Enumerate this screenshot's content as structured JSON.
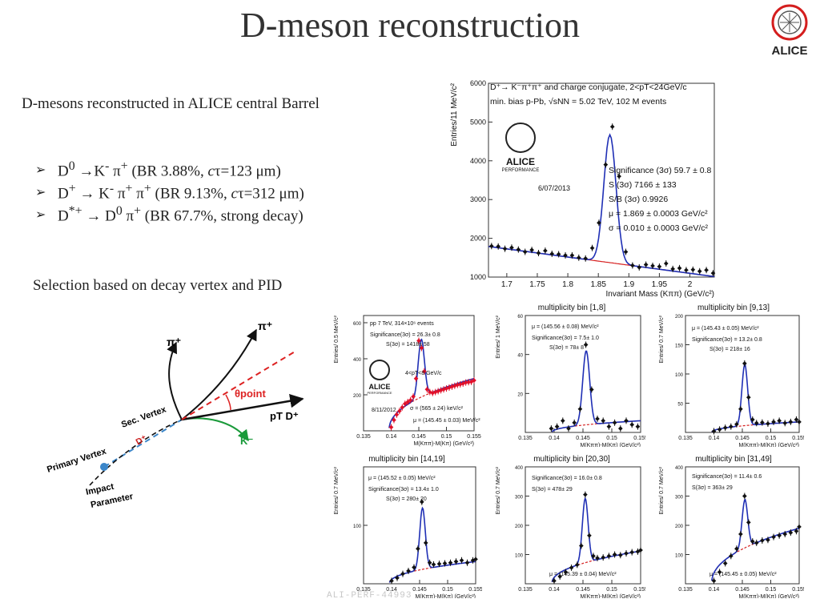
{
  "slide": {
    "title": "D-meson reconstruction",
    "logo_text": "ALICE",
    "subtitle": "D-mesons reconstructed in ALICE central Barrel",
    "bullets": [
      {
        "html": "D<sup>0</sup> →K<sup>-</sup> π<sup>+</sup> (BR 3.88%, <i>c</i>τ=123 μm)"
      },
      {
        "html": "D<sup>+</sup> → K<sup>-</sup> π<sup>+</sup> π<sup>+</sup> (BR 9.13%, <i>c</i>τ=312 μm)"
      },
      {
        "html": "D<sup>*+</sup> → D<sup>0</sup> π<sup>+</sup> (BR 67.7%, strong decay)"
      }
    ],
    "selection_text": "Selection based on decay vertex and PID",
    "watermark": "ALI-PERF-44993"
  },
  "diagram": {
    "labels": {
      "pi_top": "π⁺",
      "pi_left": "π⁺",
      "theta": "θpoint",
      "pt": "pT D⁺",
      "k": "K⁻",
      "sec_vertex": "Sec. Vertex",
      "dplus": "D⁺",
      "primary": "Primary Vertex",
      "impact": "Impact",
      "parameter": "Parameter"
    }
  },
  "colors": {
    "data": "#111111",
    "fit": "#1f2fb5",
    "bkg": "#d62020",
    "peak_red": "#e0102a"
  },
  "chart_data": [
    {
      "type": "scatter",
      "id": "dplus-mass",
      "ylabel": "Entries/11 MeV/c²",
      "xlabel": "Invariant Mass (Kππ) (GeV/c²)",
      "xlim": [
        1.67,
        2.04
      ],
      "ylim": [
        1000,
        6000
      ],
      "xticks": [
        "1.7",
        "1.75",
        "1.8",
        "1.85",
        "1.9",
        "1.95",
        "2"
      ],
      "yticks": [
        "1000",
        "2000",
        "3000",
        "4000",
        "5000",
        "6000"
      ],
      "annotations": [
        "D⁺→ K⁻π⁺π⁺ and charge conjugate, 2<pT<24GeV/c",
        "min. bias p-Pb, √sNN = 5.02 TeV, 102 M events",
        "Significance (3σ) 59.7 ± 0.8",
        "S (3σ) 7166 ± 133",
        "S/B (3σ) 0.9926",
        "μ = 1.869 ± 0.0003 GeV/c²",
        "σ = 0.010 ± 0.0003 GeV/c²"
      ],
      "logo_text": "ALICE",
      "logo_sub": "PERFORMANCE",
      "date": "6/07/2013",
      "fit": {
        "mu": 1.869,
        "sigma": 0.01,
        "bkg_a": 1790,
        "bkg_slope": -2100
      },
      "x": [
        1.675,
        1.686,
        1.697,
        1.708,
        1.719,
        1.73,
        1.741,
        1.752,
        1.763,
        1.774,
        1.785,
        1.796,
        1.807,
        1.818,
        1.829,
        1.84,
        1.851,
        1.862,
        1.873,
        1.884,
        1.895,
        1.906,
        1.917,
        1.928,
        1.939,
        1.95,
        1.961,
        1.972,
        1.983,
        1.994,
        2.005,
        2.016,
        2.027,
        2.038
      ],
      "y": [
        1800,
        1790,
        1730,
        1760,
        1710,
        1650,
        1700,
        1620,
        1680,
        1600,
        1590,
        1560,
        1560,
        1500,
        1480,
        1750,
        2400,
        3900,
        4880,
        3600,
        1650,
        1300,
        1250,
        1320,
        1290,
        1270,
        1350,
        1210,
        1230,
        1180,
        1190,
        1150,
        1180,
        1100
      ]
    },
    {
      "type": "scatter",
      "id": "dstar-pp",
      "ylabel": "Entries/ 0.5 MeV/c²",
      "xlabel": "M(Kππ)-M(Kπ) (GeV/c²)",
      "xlim": [
        0.135,
        0.155
      ],
      "ylim": [
        0,
        640
      ],
      "xticks": [
        "0.135",
        "0.14",
        "0.145",
        "0.15",
        "0.155"
      ],
      "yticks": [
        "200",
        "400",
        "600"
      ],
      "annotations": [
        "pp 7 TeV, 314×10⁶ events",
        "Significance(3σ) = 26.3± 0.8",
        "S(3σ) = 1418± 58",
        "4<pT<8 GeV/c",
        "σ = (565 ± 24) keV/c²",
        "μ = (145.45 ± 0.03) MeV/c²"
      ],
      "logo_text": "ALICE",
      "logo_sub": "PERFORMANCE",
      "date": "8/11/2012",
      "fit": {
        "mu": 0.14545,
        "sigma": 0.000565,
        "amp": 320,
        "bkg_amp": 290
      },
      "x": [
        0.14,
        0.1405,
        0.141,
        0.1415,
        0.142,
        0.1425,
        0.143,
        0.1435,
        0.144,
        0.1445,
        0.145,
        0.1455,
        0.146,
        0.1465,
        0.147,
        0.1475,
        0.148,
        0.1485,
        0.149,
        0.1495,
        0.15,
        0.1505,
        0.151,
        0.1515,
        0.152,
        0.1525,
        0.153,
        0.1535,
        0.154,
        0.1545,
        0.155
      ],
      "y": [
        20,
        60,
        90,
        110,
        130,
        150,
        160,
        170,
        190,
        290,
        500,
        460,
        330,
        230,
        215,
        210,
        215,
        220,
        225,
        230,
        235,
        240,
        245,
        250,
        255,
        258,
        262,
        268,
        270,
        272,
        280
      ]
    },
    {
      "type": "scatter",
      "id": "bin-1-8",
      "title": "multiplicity bin [1,8]",
      "ylabel": "Entries/ 1 MeV/c²",
      "xlabel": "M(Kππ)-M(Kπ) (GeV/c²)",
      "xlim": [
        0.135,
        0.155
      ],
      "ylim": [
        0,
        60
      ],
      "xticks": [
        "0.135",
        "0.14",
        "0.145",
        "0.15",
        "0.155"
      ],
      "yticks": [
        "20",
        "40",
        "60"
      ],
      "annotations": [
        "μ = (145.56 ± 0.08) MeV/c²",
        "Significance(3σ) = 7.5± 1.0",
        "S(3σ) = 78± 8"
      ],
      "fit": {
        "mu": 0.14556,
        "sigma": 0.0006,
        "amp": 38,
        "bkg_amp": 6
      },
      "x": [
        0.1395,
        0.1405,
        0.1415,
        0.1425,
        0.1435,
        0.1445,
        0.1455,
        0.1465,
        0.1475,
        0.1485,
        0.1495,
        0.1505,
        0.1515,
        0.1525,
        0.1535,
        0.1545
      ],
      "y": [
        2,
        3,
        6,
        2,
        5,
        12,
        45,
        22,
        7,
        6,
        3,
        5,
        2,
        6,
        4,
        3
      ]
    },
    {
      "type": "scatter",
      "id": "bin-9-13",
      "title": "multiplicity bin [9,13]",
      "ylabel": "Entries/ 0.7 MeV/c²",
      "xlabel": "M(Kππ)-M(Kπ) (GeV/c²)",
      "xlim": [
        0.135,
        0.155
      ],
      "ylim": [
        0,
        200
      ],
      "xticks": [
        "0.135",
        "0.14",
        "0.145",
        "0.15",
        "0.155"
      ],
      "yticks": [
        "50",
        "100",
        "150",
        "200"
      ],
      "annotations": [
        "μ = (145.43 ± 0.05) MeV/c²",
        "Significance(3σ) = 13.2± 0.8",
        "S(3σ) = 218± 16"
      ],
      "fit": {
        "mu": 0.14543,
        "sigma": 0.0005,
        "amp": 105,
        "bkg_amp": 18
      },
      "x": [
        0.14,
        0.141,
        0.142,
        0.143,
        0.144,
        0.1447,
        0.1454,
        0.1461,
        0.1468,
        0.1475,
        0.1485,
        0.1495,
        0.1505,
        0.1515,
        0.1525,
        0.1535,
        0.1545,
        0.155
      ],
      "y": [
        2,
        5,
        8,
        10,
        14,
        40,
        118,
        60,
        22,
        16,
        17,
        15,
        18,
        20,
        16,
        18,
        22,
        18
      ]
    },
    {
      "type": "scatter",
      "id": "bin-14-19",
      "title": "multiplicity bin [14,19]",
      "ylabel": "Entries/ 0.7 MeV/c²",
      "xlabel": "M(Kππ)-M(Kπ) (GeV/c²)",
      "xlim": [
        0.135,
        0.155
      ],
      "ylim": [
        0,
        200
      ],
      "xticks": [
        "0.135",
        "0.14",
        "0.145",
        "0.15",
        "0.155"
      ],
      "yticks": [
        "100"
      ],
      "annotations": [
        "μ = (145.52 ± 0.05) MeV/c²",
        "Significance(3σ) = 13.4± 1.0",
        "S(3σ) = 280± 20"
      ],
      "fit": {
        "mu": 0.14552,
        "sigma": 0.0005,
        "amp": 105,
        "bkg_amp": 38
      },
      "x": [
        0.14,
        0.141,
        0.142,
        0.143,
        0.144,
        0.1447,
        0.1454,
        0.1461,
        0.1468,
        0.1475,
        0.1485,
        0.1495,
        0.1505,
        0.1515,
        0.1525,
        0.1535,
        0.1545,
        0.155
      ],
      "y": [
        5,
        10,
        17,
        22,
        28,
        60,
        140,
        70,
        36,
        33,
        34,
        35,
        36,
        38,
        40,
        36,
        40,
        42
      ]
    },
    {
      "type": "scatter",
      "id": "bin-20-30",
      "title": "multiplicity bin [20,30]",
      "ylabel": "Entries/ 0.7 MeV/c²",
      "xlabel": "M(Kππ)-M(Kπ) (GeV/c²)",
      "xlim": [
        0.135,
        0.155
      ],
      "ylim": [
        0,
        400
      ],
      "xticks": [
        "0.135",
        "0.14",
        "0.145",
        "0.15",
        "0.155"
      ],
      "yticks": [
        "100",
        "200",
        "300",
        "400"
      ],
      "annotations": [
        "Significance(3σ) = 16.0± 0.8",
        "S(3σ) = 478± 29",
        "μ = (145.39 ± 0.04) MeV/c²"
      ],
      "fit": {
        "mu": 0.14539,
        "sigma": 0.0005,
        "amp": 220,
        "bkg_amp": 112
      },
      "x": [
        0.14,
        0.141,
        0.142,
        0.143,
        0.144,
        0.1447,
        0.1454,
        0.1461,
        0.1468,
        0.1475,
        0.1485,
        0.1495,
        0.1505,
        0.1515,
        0.1525,
        0.1535,
        0.1545,
        0.155
      ],
      "y": [
        10,
        25,
        40,
        55,
        65,
        130,
        305,
        165,
        95,
        88,
        90,
        95,
        100,
        98,
        104,
        108,
        110,
        115
      ]
    },
    {
      "type": "scatter",
      "id": "bin-31-49",
      "title": "multiplicity bin [31,49]",
      "ylabel": "Entries/ 0.7 MeV/c²",
      "xlabel": "M(Kππ)-M(Kπ) (GeV/c²)",
      "xlim": [
        0.135,
        0.155
      ],
      "ylim": [
        0,
        400
      ],
      "xticks": [
        "0.135",
        "0.14",
        "0.145",
        "0.15",
        "0.155"
      ],
      "yticks": [
        "100",
        "200",
        "300",
        "400"
      ],
      "annotations": [
        "Significance(3σ) = 11.4± 0.6",
        "S(3σ) = 363± 29",
        "μ = (145.45 ± 0.05) MeV/c²"
      ],
      "fit": {
        "mu": 0.14545,
        "sigma": 0.0005,
        "amp": 165,
        "bkg_amp": 190
      },
      "x": [
        0.14,
        0.141,
        0.142,
        0.143,
        0.144,
        0.1447,
        0.1454,
        0.1461,
        0.1468,
        0.1475,
        0.1485,
        0.1495,
        0.1505,
        0.1515,
        0.1525,
        0.1535,
        0.1545,
        0.155
      ],
      "y": [
        10,
        40,
        70,
        95,
        120,
        170,
        300,
        210,
        145,
        140,
        148,
        150,
        160,
        165,
        170,
        175,
        180,
        195
      ]
    }
  ]
}
